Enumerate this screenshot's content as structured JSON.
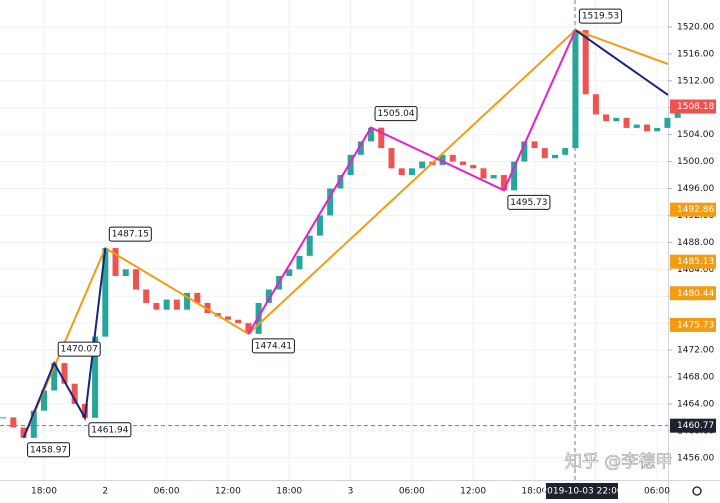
{
  "chart_data": {
    "type": "candlestick",
    "values": [
      1462,
      1460.5,
      1458.97,
      1463,
      1466,
      1470.07,
      1467,
      1464,
      1461.94,
      1474,
      1487.15,
      1483,
      1484,
      1481,
      1479,
      1478,
      1479.5,
      1478,
      1480.5,
      1479,
      1477.5,
      1477,
      1476.5,
      1476,
      1474.41,
      1479,
      1481,
      1483,
      1484,
      1486,
      1489,
      1492,
      1496,
      1498,
      1501,
      1503,
      1505.04,
      1502,
      1499,
      1498,
      1499,
      1500,
      1499.5,
      1501,
      1500,
      1499.5,
      1499,
      1497.5,
      1498,
      1495.73,
      1500,
      1503,
      1502,
      1500.5,
      1501,
      1502,
      1519.53,
      1510,
      1507,
      1506,
      1506.5,
      1505,
      1505.5,
      1504.5,
      1505,
      1506.5,
      1508.18
    ],
    "up_color": "#26a69a",
    "down_color": "#ef5350",
    "zigzags": [
      {
        "color": "#f39c12",
        "values": [
          1458.97,
          1487.15,
          1474.41,
          1519.53,
          1514.5
        ]
      },
      {
        "color": "#1a237e",
        "values": [
          1458.97,
          1470.07,
          1461.94,
          1487.15
        ]
      },
      {
        "color": "#1a237e",
        "values": [
          1519.53,
          1509.9
        ]
      },
      {
        "color": "#e91ec8",
        "values": [
          1474.41,
          1505.04,
          1495.73,
          1519.53
        ]
      }
    ],
    "xticks": [
      "18:00",
      "2",
      "06:00",
      "12:00",
      "18:00",
      "3",
      "06:00",
      "12:00",
      "18:00",
      null,
      "06:00"
    ],
    "ylim": [
      1452.7,
      1524
    ],
    "yticks": [
      {
        "value": 1456,
        "label": "1456.00"
      },
      {
        "value": 1460,
        "label": "1460.00"
      },
      {
        "value": 1464,
        "label": "1464.00"
      },
      {
        "value": 1468,
        "label": "1468.00"
      },
      {
        "value": 1472,
        "label": "1472.00"
      },
      {
        "value": 1476,
        "label": "1476.00"
      },
      {
        "value": 1480,
        "label": "1480.00"
      },
      {
        "value": 1484,
        "label": "1484.00"
      },
      {
        "value": 1488,
        "label": "1488.00"
      },
      {
        "value": 1492,
        "label": "1492.00"
      },
      {
        "value": 1496,
        "label": "1496.00"
      },
      {
        "value": 1500,
        "label": "1500.00"
      },
      {
        "value": 1504,
        "label": "1504.00"
      },
      {
        "value": 1508,
        "label": "1508.00"
      },
      {
        "value": 1512,
        "label": "1512.00"
      },
      {
        "value": 1516,
        "label": "1516.00"
      },
      {
        "value": 1520,
        "label": "1520.00"
      }
    ],
    "price_markers": [
      {
        "value": 1508.18,
        "color": "#ef5350"
      },
      {
        "value": 1492.86,
        "color": "#f39c12"
      },
      {
        "value": 1485.13,
        "color": "#f39c12"
      },
      {
        "value": 1480.44,
        "color": "#f39c12"
      },
      {
        "value": 1475.73,
        "color": "#f39c12"
      }
    ],
    "crosshair": {
      "price": 1460.77,
      "time_label": "2019-10-03  22:00",
      "color": "#1e222d"
    },
    "watermark": "知乎 @李德甲",
    "grid": true
  }
}
